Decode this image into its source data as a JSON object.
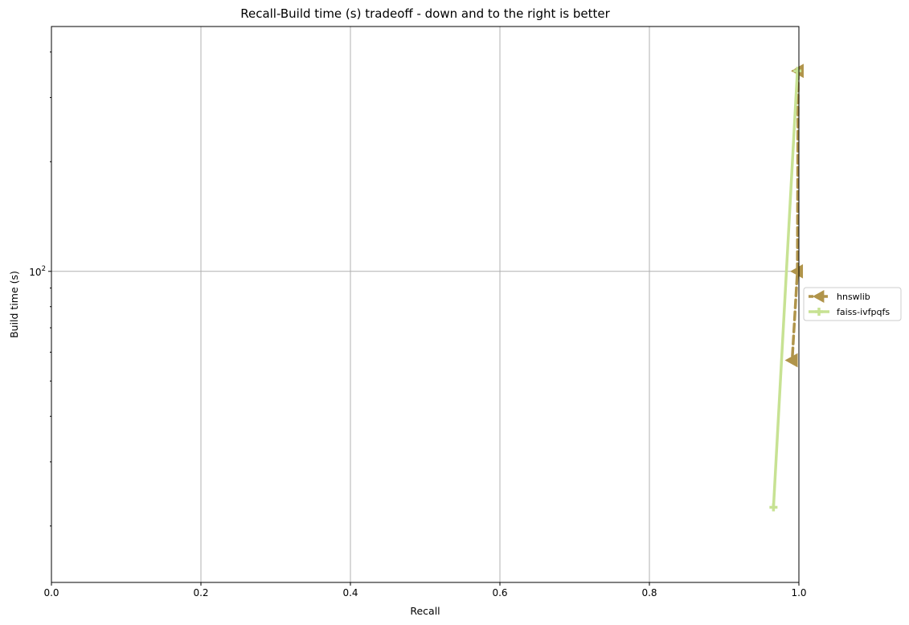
{
  "chart_data": {
    "type": "line",
    "title": "Recall-Build time (s) tradeoff - down and to the right is better",
    "xlabel": "Recall",
    "ylabel": "Build time (s)",
    "xlim": [
      0.0,
      1.0
    ],
    "ylim": [
      14.0,
      470.0
    ],
    "yscale": "log",
    "grid": true,
    "legend_position": "right, outside",
    "x_ticks": [
      "0.0",
      "0.2",
      "0.4",
      "0.6",
      "0.8",
      "1.0"
    ],
    "y_tick_label": {
      "base": "10",
      "exp": "2"
    },
    "series": [
      {
        "name": "hnswlib",
        "color": "#b0944a",
        "marker": "triangle-left",
        "line_style": "dashed",
        "x": [
          0.999,
          0.998,
          0.991
        ],
        "y": [
          355.0,
          100.0,
          57.0
        ]
      },
      {
        "name": "faiss-ivfpqfs",
        "color": "#c7e293",
        "marker": "plus",
        "line_style": "solid",
        "x": [
          0.966,
          0.998
        ],
        "y": [
          22.5,
          355.0
        ]
      }
    ]
  }
}
